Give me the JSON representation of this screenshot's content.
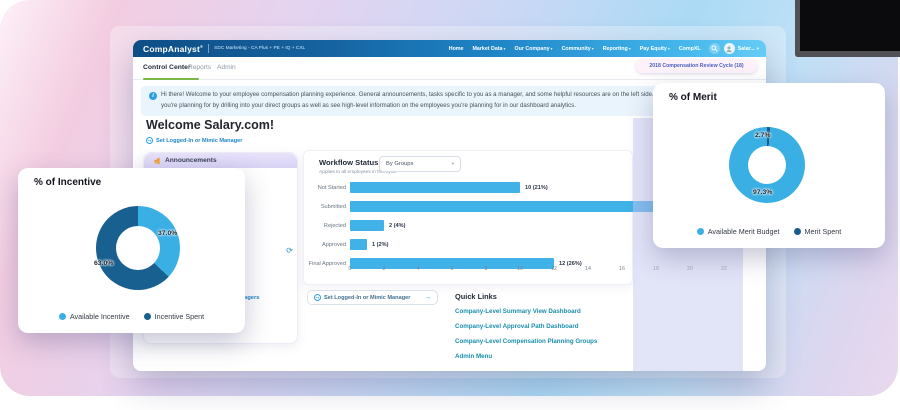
{
  "navbar": {
    "logo": "CompAnalyst",
    "logo_mark": "®",
    "subtitle": "SDC Marketing - CA Plus + PE + IQ + CXL",
    "items": [
      {
        "label": "Home",
        "caret": false
      },
      {
        "label": "Market Data",
        "caret": true
      },
      {
        "label": "Our Company",
        "caret": true
      },
      {
        "label": "Community",
        "caret": true
      },
      {
        "label": "Reporting",
        "caret": true
      },
      {
        "label": "Pay Equity",
        "caret": true
      },
      {
        "label": "CompXL",
        "caret": false
      }
    ],
    "user": "Salar..."
  },
  "cycle_pill": "2018 Compensation Review Cycle (18)",
  "tabs": [
    {
      "label": "Control Center",
      "active": true
    },
    {
      "label": "Reports",
      "active": false
    },
    {
      "label": "Admin",
      "active": false
    }
  ],
  "banner": {
    "line1": "Hi there! Welcome to your employee compensation planning experience. General announcements, tasks specific to you as a manager, and some helpful resources are on the left side. You can access",
    "line2": "you're planning for by drilling into your direct groups as well as see high-level information on the employees you're planning for in our dashboard analytics."
  },
  "welcome": {
    "title": "Welcome Salary.com!",
    "mimic_link": "Set Logged-In or Mimic Manager"
  },
  "sidebar": {
    "announcements_label": "Announcements",
    "clipped_fragment": "agers"
  },
  "mimic_box": {
    "label": "Set Logged-In or Mimic Manager",
    "arrow": "→"
  },
  "quick_links": {
    "title": "Quick Links",
    "links": [
      "Company-Level Summary View Dashboard",
      "Company-Level Approval Path Dashboard",
      "Company-Level Compensation Planning Groups",
      "Admin Menu"
    ]
  },
  "chart_data": [
    {
      "id": "workflow",
      "type": "bar",
      "orientation": "horizontal",
      "title": "Workflow Status",
      "subtitle": "Applies to all employees in this cycle",
      "filter_dropdown": "By Groups",
      "categories": [
        "Not Started",
        "Submitted",
        "Rejected",
        "Approved",
        "Final Approved"
      ],
      "values": [
        10,
        22,
        2,
        1,
        12
      ],
      "value_labels": [
        "10 (21%)",
        "",
        "2 (4%)",
        "1 (2%)",
        "12 (26%)"
      ],
      "xlim": [
        0,
        22
      ],
      "xticks": [
        0,
        2,
        4,
        6,
        8,
        10,
        12,
        14,
        16,
        18,
        20,
        22
      ],
      "bar_color": "#41b2e8",
      "grid": false,
      "legend_position": "none"
    },
    {
      "id": "incentive",
      "type": "pie",
      "subtype": "donut",
      "title": "% of Incentive",
      "start_deg": 0,
      "draw_order": [
        0,
        1
      ],
      "slices": [
        {
          "label": "Available Incentive",
          "value": 37.0,
          "display": "37.0%",
          "color": "#3aafe4"
        },
        {
          "label": "Incentive Spent",
          "value": 63.0,
          "display": "63.0%",
          "color": "#17608f"
        }
      ],
      "legend_position": "bottom"
    },
    {
      "id": "merit",
      "type": "pie",
      "subtype": "donut",
      "title": "% of Merit",
      "start_deg": -4.86,
      "draw_order": [
        1,
        0
      ],
      "slices": [
        {
          "label": "Available Merit Budget",
          "value": 97.3,
          "display": "97.3%",
          "color": "#3aafe4"
        },
        {
          "label": "Merit Spent",
          "value": 2.7,
          "display": "2.7%",
          "color": "#1b5a8c"
        }
      ],
      "legend_position": "bottom"
    }
  ]
}
